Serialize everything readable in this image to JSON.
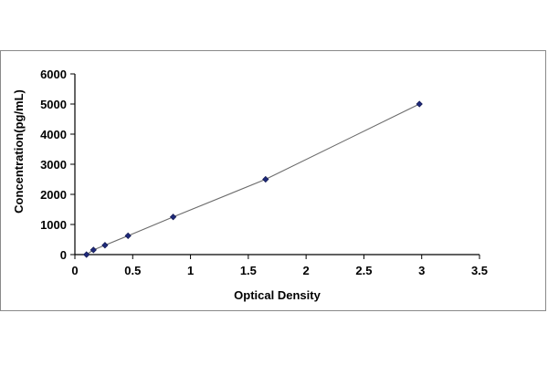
{
  "chart_data": {
    "type": "scatter",
    "xlabel": "Optical Density",
    "ylabel": "Concentration(pg/mL)",
    "xlim": [
      0,
      3.5
    ],
    "ylim": [
      0,
      6000
    ],
    "x_ticks": [
      "0",
      "0.5",
      "1",
      "1.5",
      "2",
      "2.5",
      "3",
      "3.5"
    ],
    "x_tick_values": [
      0,
      0.5,
      1,
      1.5,
      2,
      2.5,
      3,
      3.5
    ],
    "y_ticks": [
      "0",
      "1000",
      "2000",
      "3000",
      "4000",
      "5000",
      "6000"
    ],
    "y_tick_values": [
      0,
      1000,
      2000,
      3000,
      4000,
      5000,
      6000
    ],
    "grid": false,
    "series": [
      {
        "x": [
          0.1,
          0.16,
          0.26,
          0.46,
          0.85,
          1.65,
          2.98
        ],
        "y": [
          0,
          156,
          312,
          625,
          1250,
          2500,
          5000
        ],
        "color": "#1f2a7a",
        "line_color": "#6b6b6b",
        "marker": "diamond"
      }
    ]
  }
}
